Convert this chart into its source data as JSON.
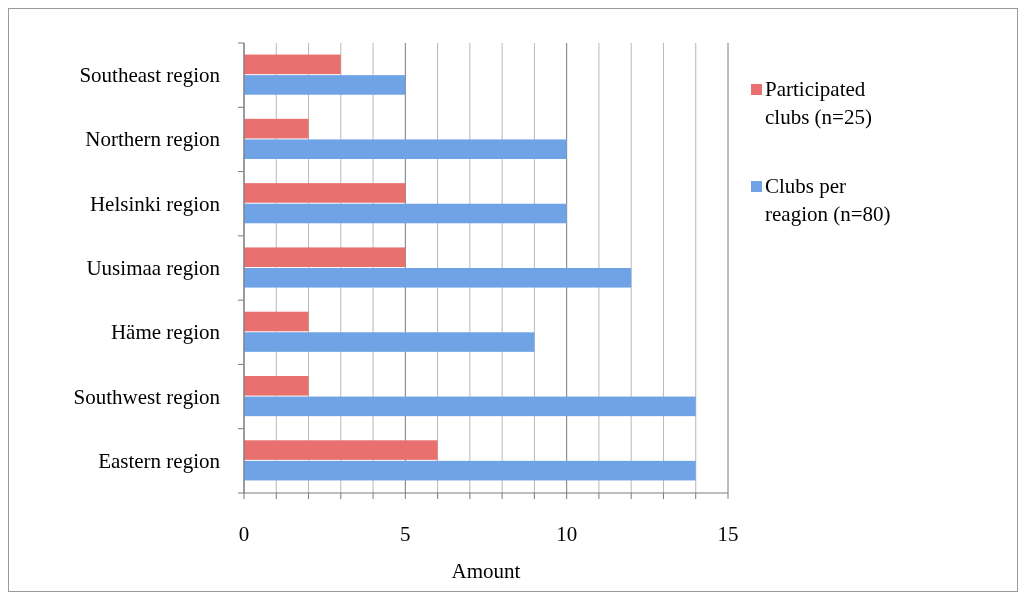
{
  "chart_data": {
    "type": "bar",
    "orientation": "horizontal",
    "categories": [
      "Southeast region",
      "Northern region",
      "Helsinki region",
      "Uusimaa region",
      "Häme region",
      "Southwest region",
      "Eastern region"
    ],
    "series": [
      {
        "name": "Participated clubs (n=25)",
        "color": "#e8706e",
        "values": [
          3,
          2,
          5,
          5,
          2,
          2,
          6
        ]
      },
      {
        "name": "Clubs per reagion (n=80)",
        "color": "#6fa3e6",
        "values": [
          5,
          10,
          10,
          12,
          9,
          14,
          14
        ]
      }
    ],
    "xlabel": "Amount",
    "xlim": [
      0,
      15
    ],
    "xticks": [
      0,
      {
        "value": 1,
        "label": null
      },
      {
        "value": 2,
        "label": null
      },
      {
        "value": 3,
        "label": null
      },
      {
        "value": 4,
        "label": null
      },
      5,
      {
        "value": 6,
        "label": null
      },
      {
        "value": 7,
        "label": null
      },
      {
        "value": 8,
        "label": null
      },
      {
        "value": 9,
        "label": null
      },
      10,
      {
        "value": 11,
        "label": null
      },
      {
        "value": 12,
        "label": null
      },
      {
        "value": 13,
        "label": null
      },
      {
        "value": 14,
        "label": null
      },
      15
    ],
    "grid": "x",
    "legend": "right"
  }
}
